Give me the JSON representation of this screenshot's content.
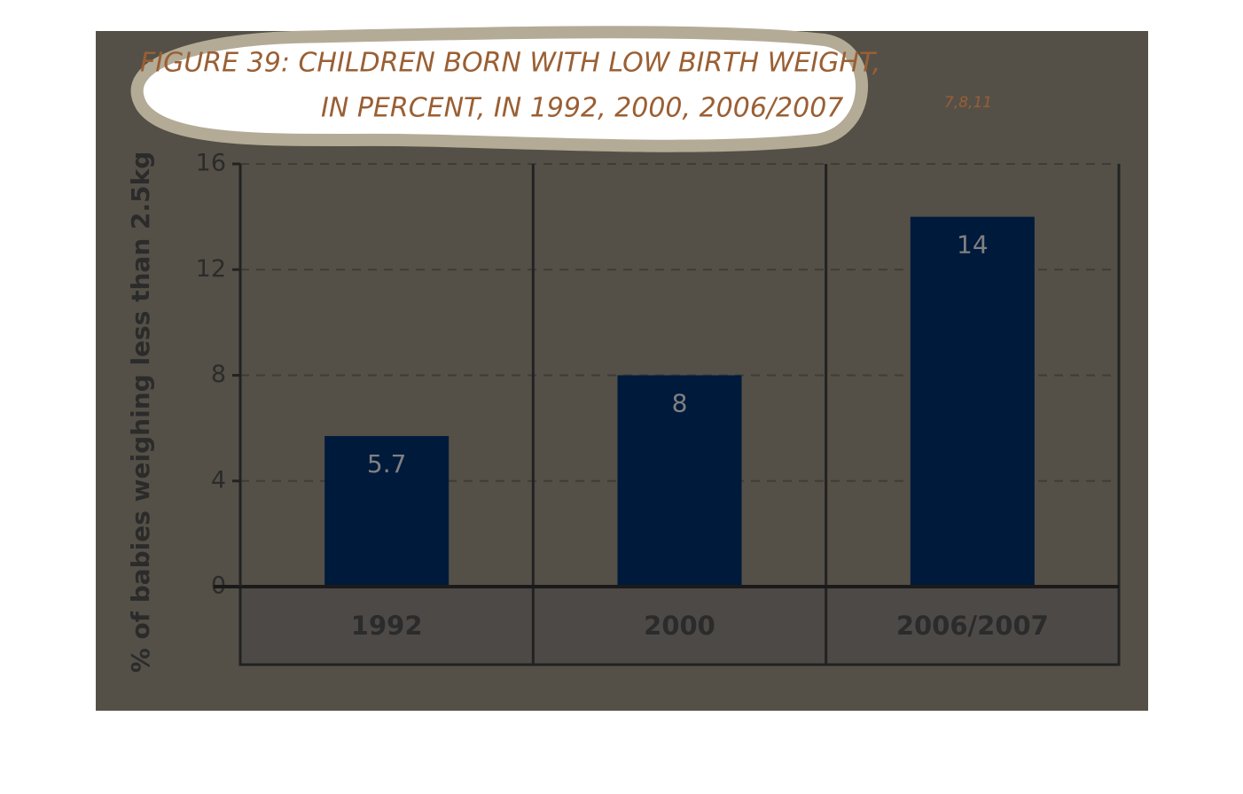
{
  "chart_data": {
    "type": "bar",
    "title": [
      "FIGURE 39: CHILDREN BORN WITH LOW BIRTH WEIGHT,",
      "IN PERCENT, IN 1992, 2000, 2006/2007"
    ],
    "title_superscript": "7,8,11",
    "y_axis_label": "% of babies weighing less than 2.5kg",
    "categories": [
      "1992",
      "2000",
      "2006/2007"
    ],
    "values": [
      5.7,
      8,
      14
    ],
    "color": "#001a3b",
    "ylim": [
      0,
      16
    ],
    "yticks": [
      0,
      4,
      8,
      12,
      16
    ],
    "grid": true
  }
}
